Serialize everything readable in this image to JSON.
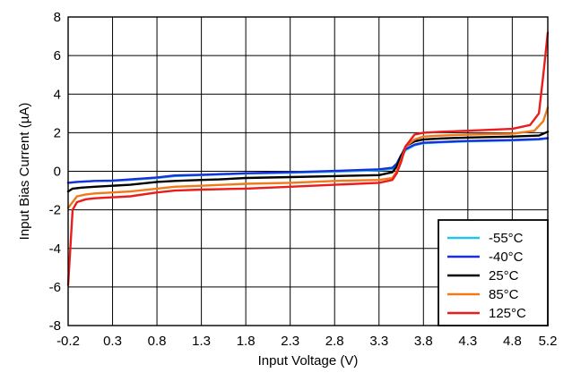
{
  "chart_data": {
    "type": "line",
    "title": "",
    "xlabel": "Input Voltage (V)",
    "ylabel": "Input Bias Current (µA)",
    "xlim": [
      -0.2,
      5.2
    ],
    "ylim": [
      -8,
      8
    ],
    "xticks": [
      "-0.2",
      "0.3",
      "0.8",
      "1.3",
      "1.8",
      "2.3",
      "2.8",
      "3.3",
      "3.8",
      "4.3",
      "4.8",
      "5.2"
    ],
    "yticks": [
      "-8",
      "-6",
      "-4",
      "-2",
      "0",
      "2",
      "4",
      "6",
      "8"
    ],
    "grid": true,
    "legend_position": "bottom-right",
    "series": [
      {
        "name": "-55°C",
        "color": "#22c4f0",
        "x": [
          -0.2,
          -0.1,
          0.1,
          0.3,
          0.5,
          0.8,
          1.0,
          1.3,
          1.8,
          2.3,
          2.8,
          3.3,
          3.45,
          3.5,
          3.55,
          3.6,
          3.7,
          3.8,
          4.0,
          4.3,
          4.8,
          5.1,
          5.2
        ],
        "y": [
          -0.6,
          -0.55,
          -0.5,
          -0.5,
          -0.45,
          -0.35,
          -0.25,
          -0.2,
          -0.12,
          -0.08,
          -0.02,
          0.05,
          0.12,
          0.3,
          0.7,
          1.1,
          1.35,
          1.45,
          1.5,
          1.55,
          1.6,
          1.65,
          1.7
        ]
      },
      {
        "name": "-40°C",
        "color": "#1a2fd8",
        "x": [
          -0.2,
          -0.1,
          0.1,
          0.3,
          0.5,
          0.8,
          1.0,
          1.3,
          1.8,
          2.3,
          2.8,
          3.3,
          3.45,
          3.5,
          3.55,
          3.6,
          3.7,
          3.8,
          4.0,
          4.3,
          4.8,
          5.1,
          5.2
        ],
        "y": [
          -0.6,
          -0.55,
          -0.5,
          -0.48,
          -0.42,
          -0.32,
          -0.22,
          -0.18,
          -0.1,
          -0.05,
          0.02,
          0.1,
          0.18,
          0.4,
          0.85,
          1.15,
          1.38,
          1.48,
          1.52,
          1.57,
          1.62,
          1.67,
          1.72
        ]
      },
      {
        "name": "25°C",
        "color": "#000000",
        "x": [
          -0.2,
          -0.15,
          -0.05,
          0.1,
          0.3,
          0.5,
          0.8,
          1.0,
          1.3,
          1.5,
          1.8,
          2.3,
          2.8,
          3.3,
          3.45,
          3.5,
          3.55,
          3.6,
          3.7,
          3.8,
          4.0,
          4.3,
          4.8,
          5.1,
          5.2
        ],
        "y": [
          -1.05,
          -0.9,
          -0.85,
          -0.8,
          -0.75,
          -0.7,
          -0.55,
          -0.5,
          -0.45,
          -0.42,
          -0.35,
          -0.3,
          -0.25,
          -0.2,
          -0.05,
          0.25,
          0.8,
          1.3,
          1.55,
          1.65,
          1.7,
          1.75,
          1.8,
          1.85,
          2.05
        ]
      },
      {
        "name": "85°C",
        "color": "#f07a1a",
        "x": [
          -0.2,
          -0.1,
          0.0,
          0.1,
          0.3,
          0.5,
          0.8,
          1.0,
          1.3,
          1.8,
          2.3,
          2.8,
          3.3,
          3.45,
          3.5,
          3.55,
          3.6,
          3.7,
          3.8,
          4.0,
          4.3,
          4.8,
          5.05,
          5.15,
          5.2
        ],
        "y": [
          -1.9,
          -1.3,
          -1.2,
          -1.15,
          -1.1,
          -1.05,
          -0.9,
          -0.8,
          -0.75,
          -0.65,
          -0.6,
          -0.5,
          -0.45,
          -0.35,
          0.0,
          0.6,
          1.3,
          1.65,
          1.8,
          1.85,
          1.9,
          1.95,
          2.1,
          2.6,
          3.3
        ]
      },
      {
        "name": "125°C",
        "color": "#ea1c1c",
        "x": [
          -0.2,
          -0.15,
          -0.1,
          0.0,
          0.1,
          0.3,
          0.5,
          0.8,
          1.0,
          1.3,
          1.8,
          2.3,
          2.8,
          3.3,
          3.45,
          3.5,
          3.55,
          3.6,
          3.7,
          3.8,
          4.0,
          4.3,
          4.8,
          5.0,
          5.1,
          5.15,
          5.2
        ],
        "y": [
          -5.9,
          -2.0,
          -1.6,
          -1.45,
          -1.4,
          -1.35,
          -1.3,
          -1.1,
          -1.0,
          -0.95,
          -0.9,
          -0.8,
          -0.7,
          -0.6,
          -0.45,
          -0.1,
          0.5,
          1.3,
          1.9,
          2.0,
          2.05,
          2.1,
          2.2,
          2.4,
          3.0,
          5.0,
          7.2
        ]
      }
    ]
  }
}
